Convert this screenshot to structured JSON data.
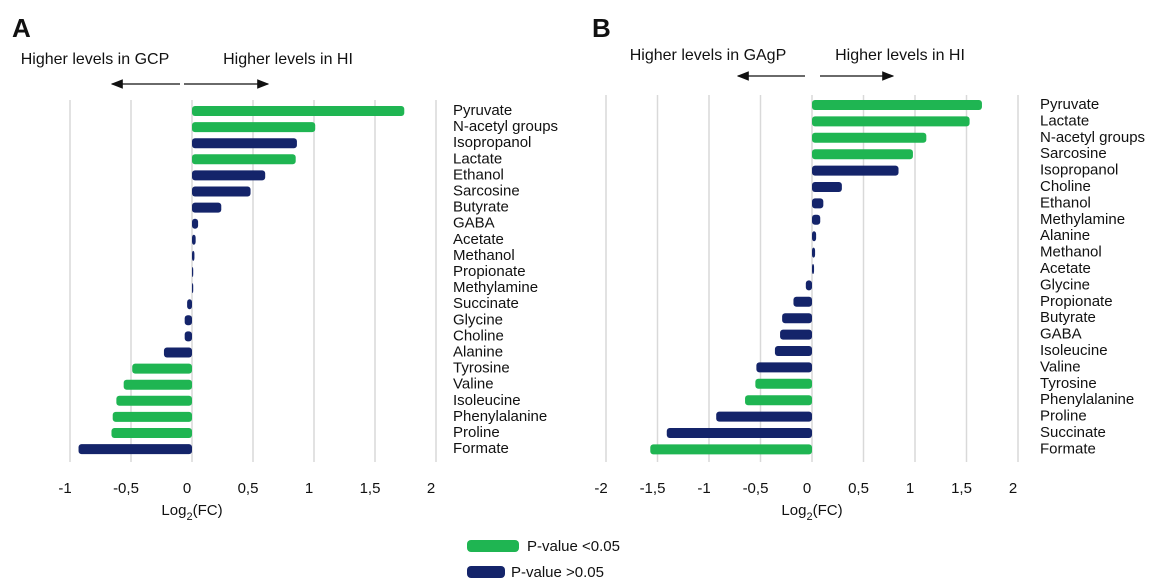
{
  "chart_data": [
    {
      "type": "bar",
      "orientation": "horizontal",
      "panel": "A",
      "annotations": [
        "Higher levels in GCP",
        "Higher levels in HI"
      ],
      "categories": [
        "Pyruvate",
        "N-acetyl groups",
        "Isopropanol",
        "Lactate",
        "Ethanol",
        "Sarcosine",
        "Butyrate",
        "GABA",
        "Acetate",
        "Methanol",
        "Propionate",
        "Methylamine",
        "Succinate",
        "Glycine",
        "Choline",
        "Alanine",
        "Tyrosine",
        "Valine",
        "Isoleucine",
        "Phenylalanine",
        "Proline",
        "Formate"
      ],
      "series": [
        {
          "name": "P-value <0.05",
          "color": "#1fb552",
          "values": [
            1.74,
            1.01,
            null,
            0.85,
            null,
            null,
            null,
            null,
            null,
            null,
            null,
            null,
            null,
            null,
            null,
            null,
            -0.49,
            -0.56,
            -0.62,
            -0.65,
            -0.66,
            null
          ]
        },
        {
          "name": "P-value >0.05",
          "color": "#14246a",
          "values": [
            null,
            null,
            0.86,
            null,
            0.6,
            0.48,
            0.24,
            0.05,
            0.03,
            0.02,
            0.01,
            0.01,
            -0.04,
            -0.06,
            -0.06,
            -0.23,
            null,
            null,
            null,
            null,
            null,
            -0.93
          ]
        }
      ],
      "xlim": [
        -1,
        2
      ],
      "xticks": [
        -1,
        {
          "value": -0.5,
          "label": "-0,5"
        },
        0,
        {
          "value": 0.5,
          "label": "0,5"
        },
        1,
        {
          "value": 1.5,
          "label": "1,5"
        },
        2
      ],
      "xlabel": "Log2(FC)",
      "grid": true
    },
    {
      "type": "bar",
      "orientation": "horizontal",
      "panel": "B",
      "annotations": [
        "Higher levels in GAgP",
        "Higher levels in HI"
      ],
      "categories": [
        "Pyruvate",
        "Lactate",
        "N-acetyl groups",
        "Sarcosine",
        "Isopropanol",
        "Choline",
        "Ethanol",
        "Methylamine",
        "Alanine",
        "Methanol",
        "Acetate",
        "Glycine",
        "Propionate",
        "Butyrate",
        "GABA",
        "Isoleucine",
        "Valine",
        "Tyrosine",
        "Phenylalanine",
        "Proline",
        "Succinate",
        "Formate"
      ],
      "series": [
        {
          "name": "P-value <0.05",
          "color": "#1fb552",
          "values": [
            1.65,
            1.53,
            1.11,
            0.98,
            null,
            null,
            null,
            null,
            null,
            null,
            null,
            null,
            null,
            null,
            null,
            null,
            null,
            -0.55,
            -0.65,
            null,
            null,
            -1.57
          ]
        },
        {
          "name": "P-value >0.05",
          "color": "#14246a",
          "values": [
            null,
            null,
            null,
            null,
            0.84,
            0.29,
            0.11,
            0.08,
            0.04,
            0.03,
            0.02,
            -0.06,
            -0.18,
            -0.29,
            -0.31,
            -0.36,
            -0.54,
            null,
            null,
            -0.93,
            -1.41,
            null
          ]
        }
      ],
      "xlim": [
        -2,
        2
      ],
      "xticks": [
        -2,
        {
          "value": -1.5,
          "label": "-1,5"
        },
        -1,
        {
          "value": -0.5,
          "label": "-0,5"
        },
        0,
        {
          "value": 0.5,
          "label": "0,5"
        },
        1,
        {
          "value": 1.5,
          "label": "1,5"
        },
        2
      ],
      "xlabel": "Log2(FC)",
      "grid": true
    }
  ]
}
